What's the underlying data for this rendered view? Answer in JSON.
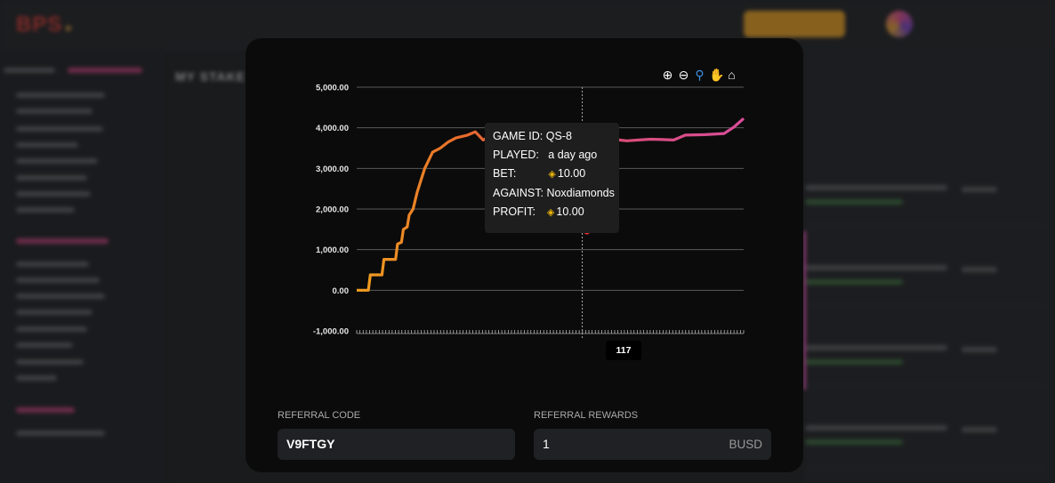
{
  "background": {
    "nav_links": [
      "",
      ""
    ],
    "main_title": "MY STAKE"
  },
  "chart": {
    "toolbar_icons": [
      "zoom-in-icon",
      "zoom-out-icon",
      "zoom-select-icon",
      "pan-hand-icon",
      "home-reset-icon"
    ],
    "y_tick_labels": [
      "5,000.00",
      "4,000.00",
      "3,000.00",
      "2,000.00",
      "1,000.00",
      "0.00",
      "-1,000.00"
    ],
    "crosshair_x_label": "117",
    "tooltip": {
      "game_id_label": "GAME ID:",
      "game_id_value": "QS-8",
      "played_label": "PLAYED:",
      "played_value": "a day ago",
      "bet_label": "BET:",
      "bet_value": "10.00",
      "against_label": "AGAINST:",
      "against_value": "Noxdiamonds",
      "profit_label": "PROFIT:",
      "profit_value": "10.00"
    },
    "line_colors": [
      "#f0a020",
      "#e06030",
      "#d94d8a"
    ],
    "coin_color": "#f0b90b"
  },
  "chart_data": {
    "type": "line",
    "title": "",
    "xlabel": "",
    "ylabel": "",
    "ylim": [
      -1000,
      5000
    ],
    "y_ticks": [
      5000,
      4000,
      3000,
      2000,
      1000,
      0,
      -1000
    ],
    "series": [
      {
        "values_xy": [
          [
            1,
            0
          ],
          [
            7,
            0
          ],
          [
            8,
            380
          ],
          [
            14,
            380
          ],
          [
            15,
            760
          ],
          [
            21,
            760
          ],
          [
            22,
            1140
          ],
          [
            24,
            1180
          ],
          [
            25,
            1500
          ],
          [
            27,
            1560
          ],
          [
            28,
            1850
          ],
          [
            30,
            2000
          ],
          [
            32,
            2400
          ],
          [
            34,
            2700
          ],
          [
            36,
            3000
          ],
          [
            38,
            3200
          ],
          [
            40,
            3400
          ],
          [
            44,
            3500
          ],
          [
            48,
            3650
          ],
          [
            52,
            3750
          ],
          [
            58,
            3820
          ],
          [
            62,
            3900
          ],
          [
            66,
            3700
          ],
          [
            70,
            3800
          ],
          [
            73,
            3900
          ],
          [
            77,
            3600
          ],
          [
            80,
            3850
          ],
          [
            84,
            3780
          ],
          [
            88,
            3650
          ],
          [
            92,
            3700
          ],
          [
            98,
            3720
          ],
          [
            104,
            3700
          ],
          [
            110,
            3690
          ],
          [
            116,
            3640
          ],
          [
            117,
            3650
          ],
          [
            120,
            3700
          ],
          [
            124,
            3740
          ],
          [
            130,
            3720
          ],
          [
            136,
            3700
          ],
          [
            140,
            3680
          ],
          [
            146,
            3700
          ],
          [
            152,
            3720
          ],
          [
            158,
            3710
          ],
          [
            164,
            3700
          ],
          [
            170,
            3820
          ],
          [
            180,
            3830
          ],
          [
            190,
            3860
          ],
          [
            195,
            4020
          ],
          [
            200,
            4230
          ]
        ]
      }
    ],
    "highlight_point": {
      "x": 117,
      "y": 3650
    },
    "extra_point": {
      "x": 118,
      "y": 1450
    }
  },
  "referral": {
    "code_label": "REFERRAL CODE",
    "code_value": "V9FTGY",
    "rewards_label": "REFERRAL REWARDS",
    "rewards_value": "1",
    "rewards_unit": "BUSD"
  }
}
